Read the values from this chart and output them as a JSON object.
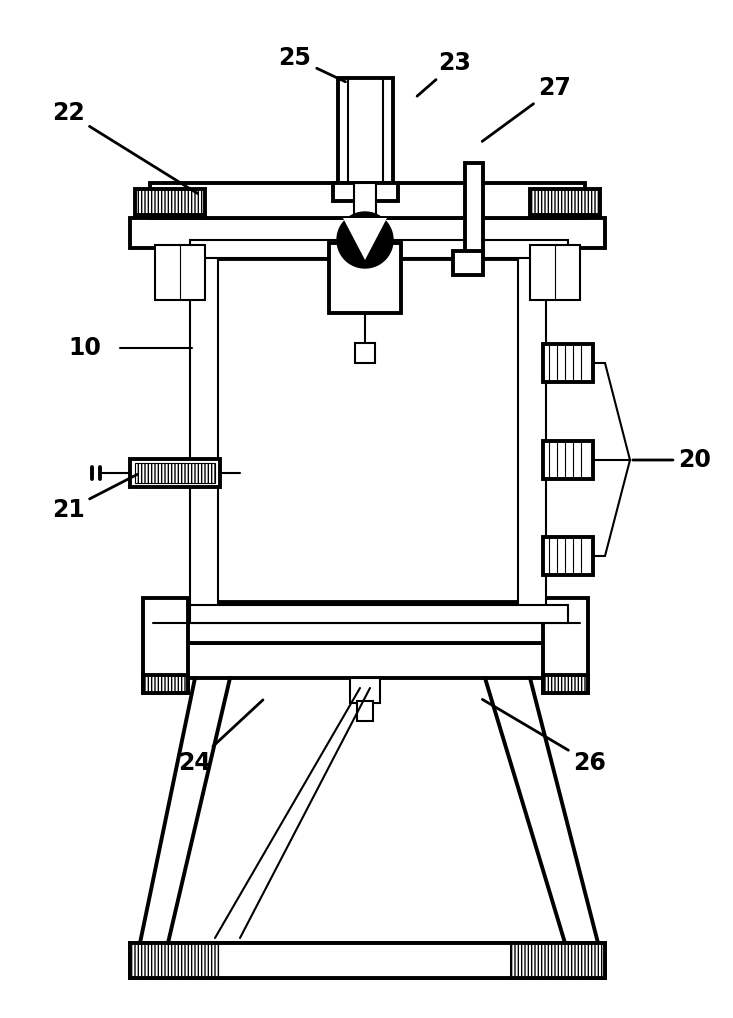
{
  "bg_color": "#ffffff",
  "fig_width": 7.33,
  "fig_height": 10.18,
  "dpi": 100,
  "lw_main": 2.8,
  "lw_thin": 1.5,
  "lw_hair": 0.8,
  "label_fontsize": 17,
  "label_fontweight": "bold"
}
